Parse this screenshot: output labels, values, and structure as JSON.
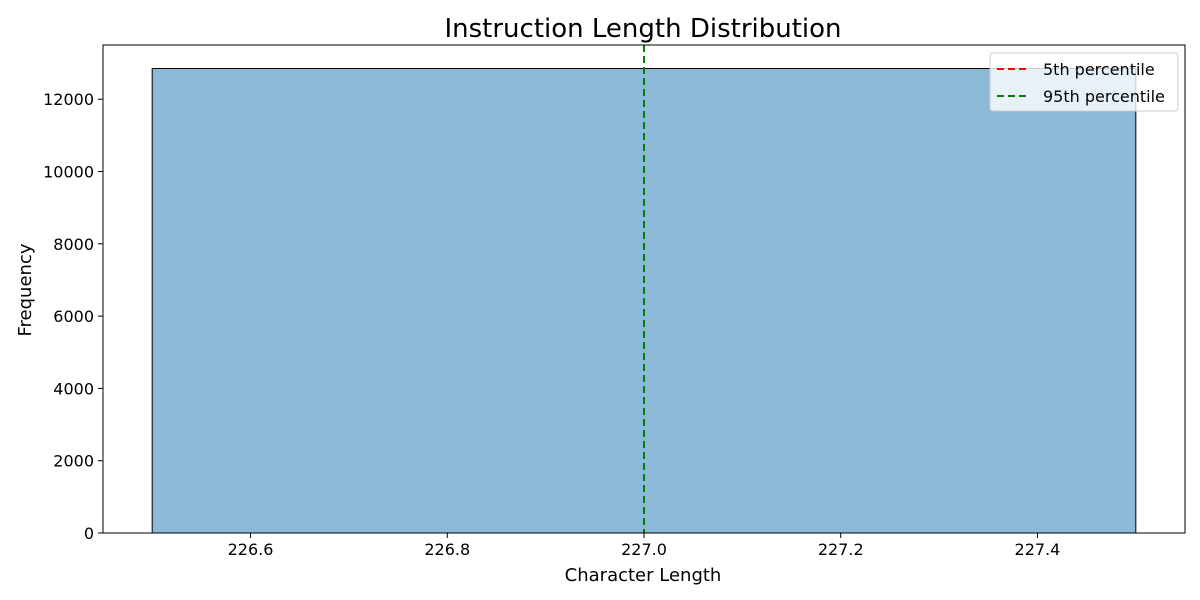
{
  "chart_data": {
    "type": "bar",
    "title": "Instruction Length Distribution",
    "xlabel": "Character Length",
    "ylabel": "Frequency",
    "xlim": [
      226.45,
      227.55
    ],
    "ylim": [
      0,
      13500
    ],
    "bins": [
      {
        "x0": 226.5,
        "x1": 227.5,
        "count": 12850
      }
    ],
    "x_ticks": [
      {
        "value": 226.6,
        "label": "226.6"
      },
      {
        "value": 226.8,
        "label": "226.8"
      },
      {
        "value": 227.0,
        "label": "227.0"
      },
      {
        "value": 227.2,
        "label": "227.2"
      },
      {
        "value": 227.4,
        "label": "227.4"
      }
    ],
    "y_ticks": [
      {
        "value": 0,
        "label": "0"
      },
      {
        "value": 2000,
        "label": "2000"
      },
      {
        "value": 4000,
        "label": "4000"
      },
      {
        "value": 6000,
        "label": "6000"
      },
      {
        "value": 8000,
        "label": "8000"
      },
      {
        "value": 10000,
        "label": "10000"
      },
      {
        "value": 12000,
        "label": "12000"
      }
    ],
    "reference_lines": [
      {
        "name": "5th percentile",
        "x": 227.0,
        "color": "#ff0000",
        "style": "dashed"
      },
      {
        "name": "95th percentile",
        "x": 227.0,
        "color": "#008000",
        "style": "dashed"
      }
    ],
    "bar_color": "#8db9d9",
    "bar_edge_color": "#000000",
    "grid": false,
    "legend_position": "top-right"
  }
}
